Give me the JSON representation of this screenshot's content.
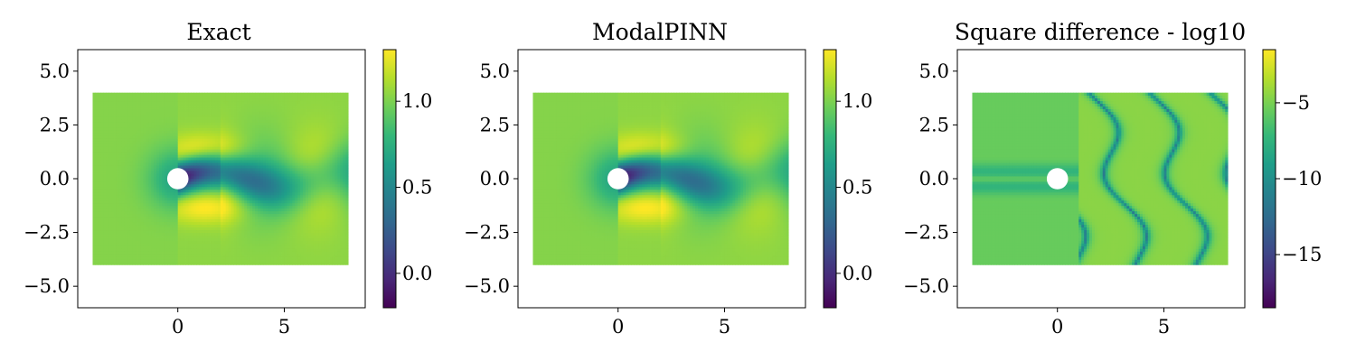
{
  "colors": {
    "viridis": [
      "#440154",
      "#482878",
      "#3e4989",
      "#31688e",
      "#26828e",
      "#1f9e89",
      "#35b779",
      "#6ece58",
      "#b5de2b",
      "#fde725"
    ],
    "cylinder": "#ffffff",
    "frame": "#000000"
  },
  "chart_data": [
    {
      "type": "scatter",
      "title": "Exact",
      "xlabel": "",
      "ylabel": "",
      "xlim": [
        -4.7,
        8.8
      ],
      "ylim": [
        -6.0,
        6.0
      ],
      "xticks": [
        0,
        5
      ],
      "xtick_labels": [
        "0",
        "5"
      ],
      "yticks": [
        5.0,
        2.5,
        0.0,
        -2.5,
        -5.0
      ],
      "ytick_labels": [
        "5.0",
        "2.5",
        "0.0",
        "−2.5",
        "−5.0"
      ],
      "domain_x": [
        -4.0,
        8.0
      ],
      "domain_y": [
        -4.0,
        4.0
      ],
      "cylinder": {
        "cx": 0,
        "cy": 0,
        "r": 0.5
      },
      "colorbar": {
        "colormap": "viridis",
        "range": [
          -0.2,
          1.3
        ],
        "ticks": [
          0.0,
          0.5,
          1.0
        ],
        "tick_labels": [
          "0.0",
          "0.5",
          "1.0"
        ]
      },
      "field": "exact"
    },
    {
      "type": "scatter",
      "title": "ModalPINN",
      "xlabel": "",
      "ylabel": "",
      "xlim": [
        -4.7,
        8.8
      ],
      "ylim": [
        -6.0,
        6.0
      ],
      "xticks": [
        0,
        5
      ],
      "xtick_labels": [
        "0",
        "5"
      ],
      "yticks": [
        5.0,
        2.5,
        0.0,
        -2.5,
        -5.0
      ],
      "ytick_labels": [
        "5.0",
        "2.5",
        "0.0",
        "−2.5",
        "−5.0"
      ],
      "domain_x": [
        -4.0,
        8.0
      ],
      "domain_y": [
        -4.0,
        4.0
      ],
      "cylinder": {
        "cx": 0,
        "cy": 0,
        "r": 0.5
      },
      "colorbar": {
        "colormap": "viridis",
        "range": [
          -0.2,
          1.3
        ],
        "ticks": [
          0.0,
          0.5,
          1.0
        ],
        "tick_labels": [
          "0.0",
          "0.5",
          "1.0"
        ]
      },
      "field": "modal"
    },
    {
      "type": "scatter",
      "title": "Square difference - log10",
      "xlabel": "",
      "ylabel": "",
      "xlim": [
        -4.7,
        8.8
      ],
      "ylim": [
        -6.0,
        6.0
      ],
      "xticks": [
        0,
        5
      ],
      "xtick_labels": [
        "0",
        "5"
      ],
      "yticks": [
        5.0,
        2.5,
        0.0,
        -2.5,
        -5.0
      ],
      "ytick_labels": [
        "5.0",
        "2.5",
        "0.0",
        "−2.5",
        "−5.0"
      ],
      "domain_x": [
        -4.0,
        8.0
      ],
      "domain_y": [
        -4.0,
        4.0
      ],
      "cylinder": {
        "cx": 0,
        "cy": 0,
        "r": 0.5
      },
      "colorbar": {
        "colormap": "viridis",
        "range": [
          -18.5,
          -1.5
        ],
        "ticks": [
          -5,
          -10,
          -15
        ],
        "tick_labels": [
          "−5",
          "−10",
          "−15"
        ]
      },
      "field": "error"
    }
  ]
}
